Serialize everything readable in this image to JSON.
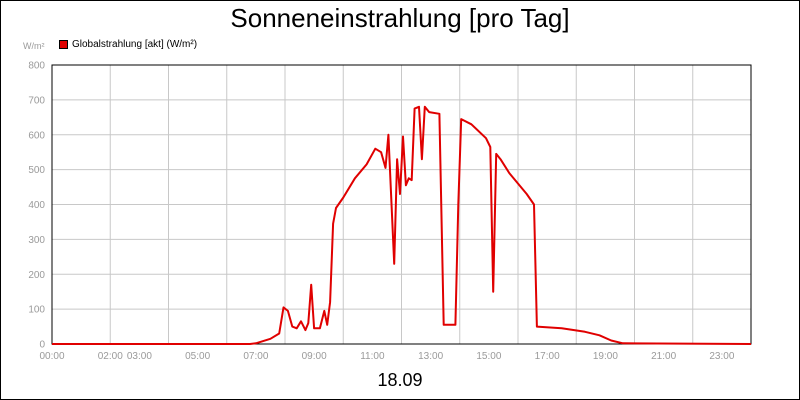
{
  "chart_data": {
    "type": "line",
    "title": "Sonneneinstrahlung [pro Tag]",
    "ylabel": "W/m²",
    "xlabel": "18.09",
    "ylim": [
      0,
      800
    ],
    "xlim_hours": [
      0,
      24
    ],
    "grid": true,
    "legend_position": "top-left",
    "x_tick_labels": [
      "00:00",
      "02:00",
      "03:00",
      "05:00",
      "07:00",
      "09:00",
      "11:00",
      "13:00",
      "15:00",
      "17:00",
      "19:00",
      "21:00",
      "23:00"
    ],
    "y_ticks": [
      0,
      100,
      200,
      300,
      400,
      500,
      600,
      700,
      800
    ],
    "series": [
      {
        "name": "Globalstrahlung [akt] (W/m²)",
        "color": "#e00000",
        "x_hours": [
          0,
          6.8,
          7.0,
          7.5,
          7.8,
          7.95,
          8.1,
          8.25,
          8.4,
          8.55,
          8.7,
          8.8,
          8.9,
          9.0,
          9.2,
          9.35,
          9.45,
          9.55,
          9.65,
          9.75,
          10.0,
          10.4,
          10.8,
          11.1,
          11.3,
          11.45,
          11.55,
          11.75,
          11.85,
          11.95,
          12.05,
          12.15,
          12.25,
          12.35,
          12.45,
          12.6,
          12.7,
          12.8,
          12.95,
          13.3,
          13.45,
          13.55,
          13.85,
          13.95,
          14.05,
          14.4,
          14.9,
          15.05,
          15.15,
          15.25,
          15.4,
          15.7,
          16.3,
          16.55,
          16.65,
          17.5,
          18.3,
          18.8,
          19.2,
          19.6,
          24
        ],
        "values": [
          0,
          0,
          2,
          15,
          30,
          105,
          95,
          50,
          45,
          65,
          40,
          60,
          170,
          45,
          45,
          95,
          55,
          120,
          345,
          390,
          420,
          475,
          515,
          560,
          550,
          505,
          600,
          230,
          530,
          430,
          595,
          455,
          475,
          470,
          675,
          680,
          530,
          680,
          665,
          660,
          55,
          55,
          55,
          400,
          645,
          630,
          590,
          565,
          150,
          545,
          530,
          490,
          430,
          400,
          50,
          45,
          35,
          25,
          10,
          2,
          0
        ]
      }
    ]
  }
}
